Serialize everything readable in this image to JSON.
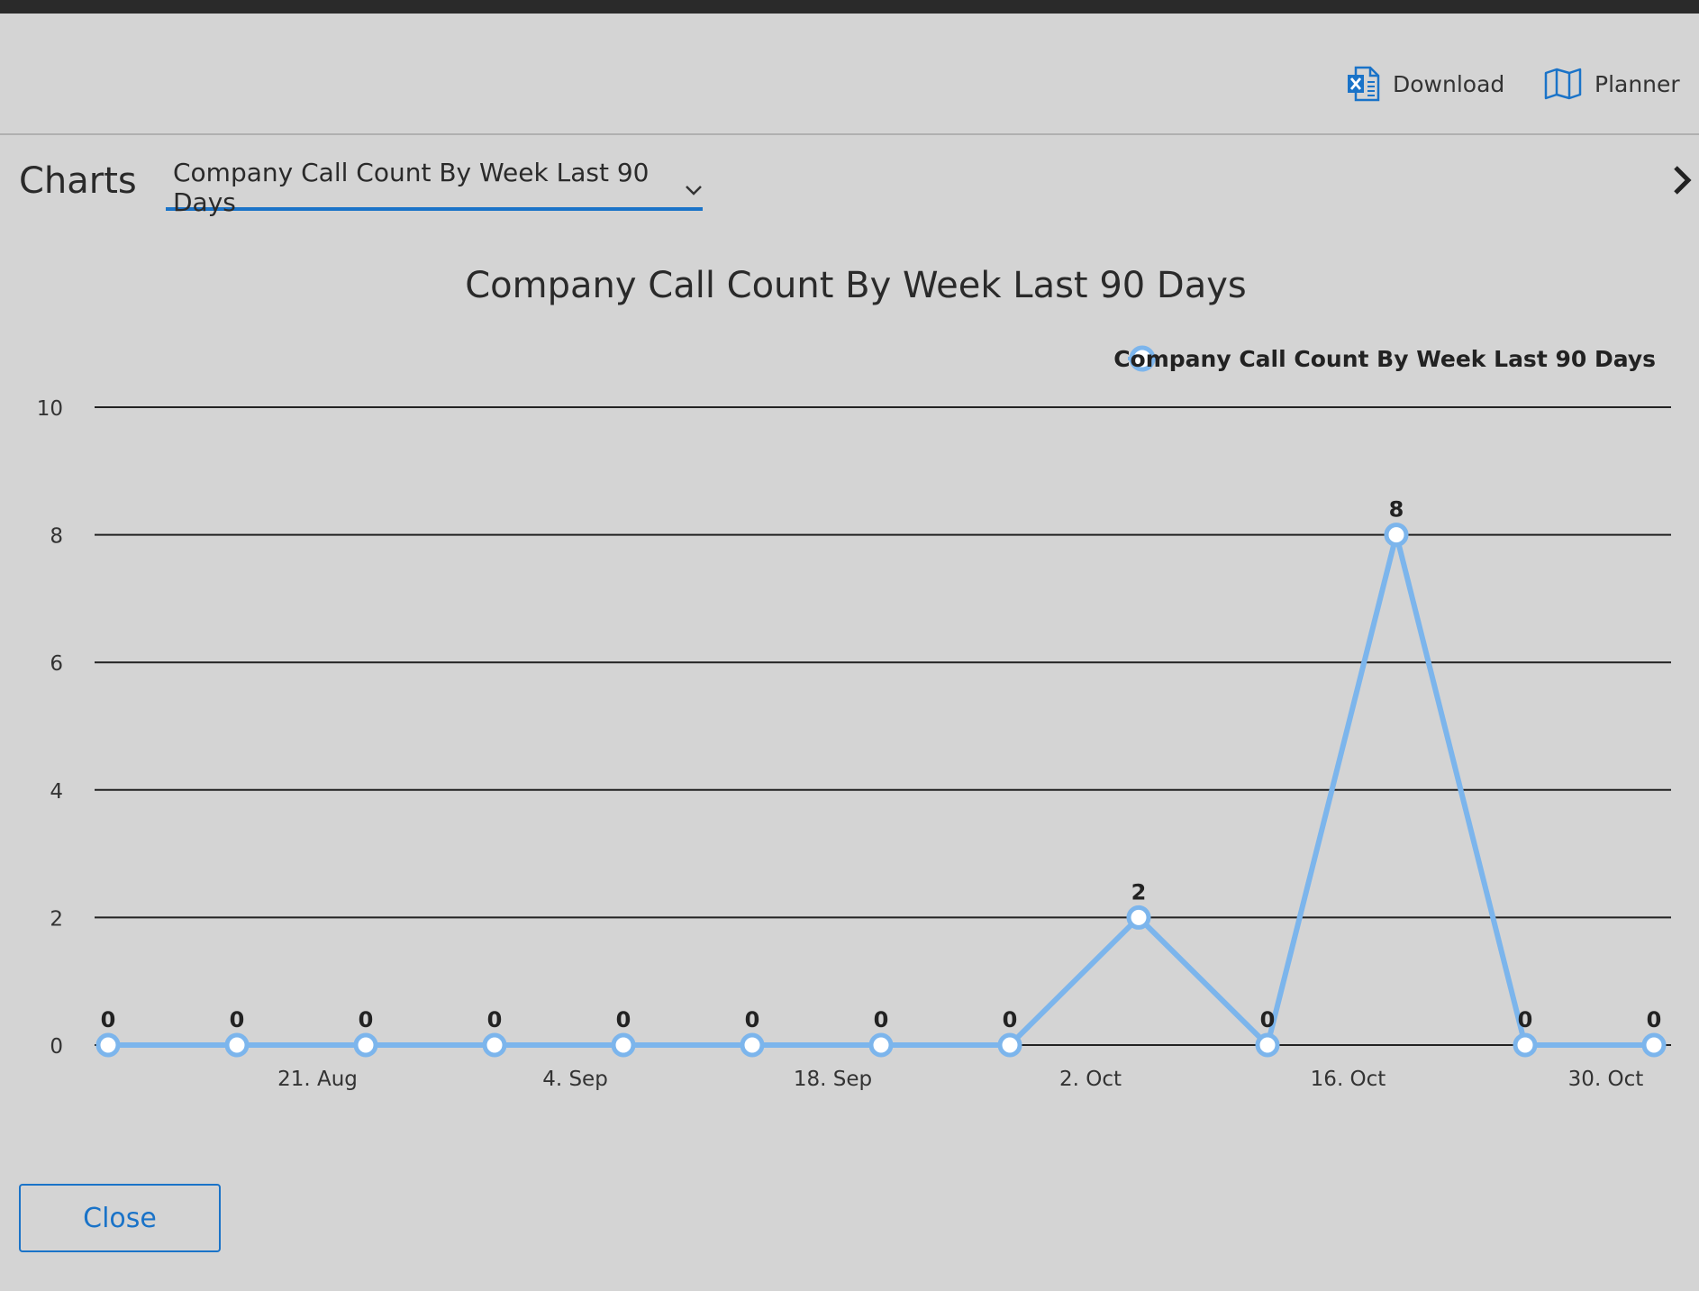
{
  "header": {
    "download_label": "Download",
    "planner_label": "Planner",
    "download_icon": "excel-icon",
    "planner_icon": "map-icon"
  },
  "charts": {
    "title": "Charts",
    "selected": "Company Call Count By Week Last 90 Days"
  },
  "footer": {
    "close_label": "Close"
  },
  "colors": {
    "accent": "#1a73c8",
    "series": "#7cb5ec",
    "background": "#d4d4d4"
  },
  "chart_data": {
    "type": "line",
    "title": "Company Call Count By Week Last 90 Days",
    "xlabel": "",
    "ylabel": "",
    "ylim": [
      0,
      10
    ],
    "yticks": [
      0,
      2,
      4,
      6,
      8,
      10
    ],
    "x": [
      "2023-08-07",
      "2023-08-14",
      "2023-08-21",
      "2023-08-28",
      "2023-09-04",
      "2023-09-11",
      "2023-09-18",
      "2023-09-25",
      "2023-10-02",
      "2023-10-09",
      "2023-10-16",
      "2023-10-23",
      "2023-10-30"
    ],
    "xticks": [
      "21. Aug",
      "4. Sep",
      "18. Sep",
      "2. Oct",
      "16. Oct",
      "30. Oct"
    ],
    "series": [
      {
        "name": "Company Call Count By Week Last 90 Days",
        "values": [
          0,
          0,
          0,
          0,
          0,
          0,
          0,
          0,
          2,
          0,
          8,
          0,
          0
        ],
        "data_labels": [
          "0",
          "0",
          "0",
          "0",
          "0",
          "0",
          "0",
          "0",
          "2",
          "0",
          "8",
          "0",
          "0"
        ]
      }
    ],
    "grid": true,
    "legend": "top-right",
    "data_labels": true
  }
}
